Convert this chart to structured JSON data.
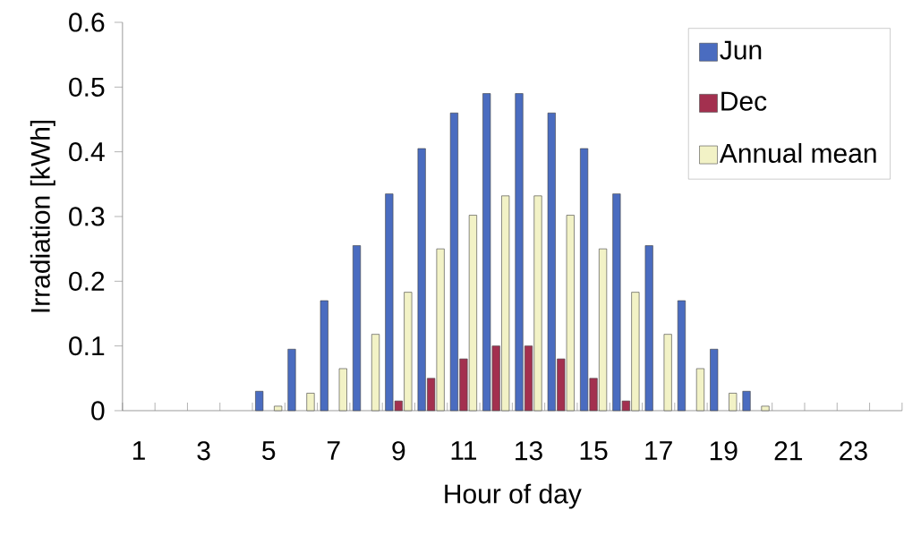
{
  "chart_data": {
    "type": "bar",
    "xlabel": "Hour of day",
    "ylabel": "Irradiation [kWh]",
    "categories": [
      "1",
      null,
      "3",
      null,
      "5",
      null,
      "7",
      null,
      "9",
      null,
      "11",
      null,
      "13",
      null,
      "15",
      null,
      "17",
      null,
      "19",
      null,
      "21",
      null,
      "23",
      null
    ],
    "series": [
      {
        "name": "Jun",
        "color": "#4a6cc0",
        "values": [
          0,
          0,
          0,
          0,
          0.03,
          0.095,
          0.17,
          0.255,
          0.335,
          0.405,
          0.46,
          0.49,
          0.49,
          0.46,
          0.405,
          0.335,
          0.255,
          0.17,
          0.095,
          0.03,
          0,
          0,
          0,
          0
        ]
      },
      {
        "name": "Dec",
        "color": "#a3304f",
        "values": [
          0,
          0,
          0,
          0,
          0,
          0,
          0,
          0,
          0.015,
          0.05,
          0.08,
          0.1,
          0.1,
          0.08,
          0.05,
          0.015,
          0,
          0,
          0,
          0,
          0,
          0,
          0,
          0
        ]
      },
      {
        "name": "Annual mean",
        "color": "#f2f2c6",
        "values": [
          0,
          0,
          0,
          0,
          0.007,
          0.027,
          0.065,
          0.118,
          0.183,
          0.25,
          0.302,
          0.332,
          0.332,
          0.302,
          0.25,
          0.183,
          0.118,
          0.065,
          0.027,
          0.007,
          0,
          0,
          0,
          0
        ]
      }
    ],
    "ylim": [
      0,
      0.6
    ],
    "yticks": [
      0,
      0.1,
      0.2,
      0.3,
      0.4,
      0.5,
      0.6
    ],
    "grid": false,
    "legend": "top right"
  }
}
